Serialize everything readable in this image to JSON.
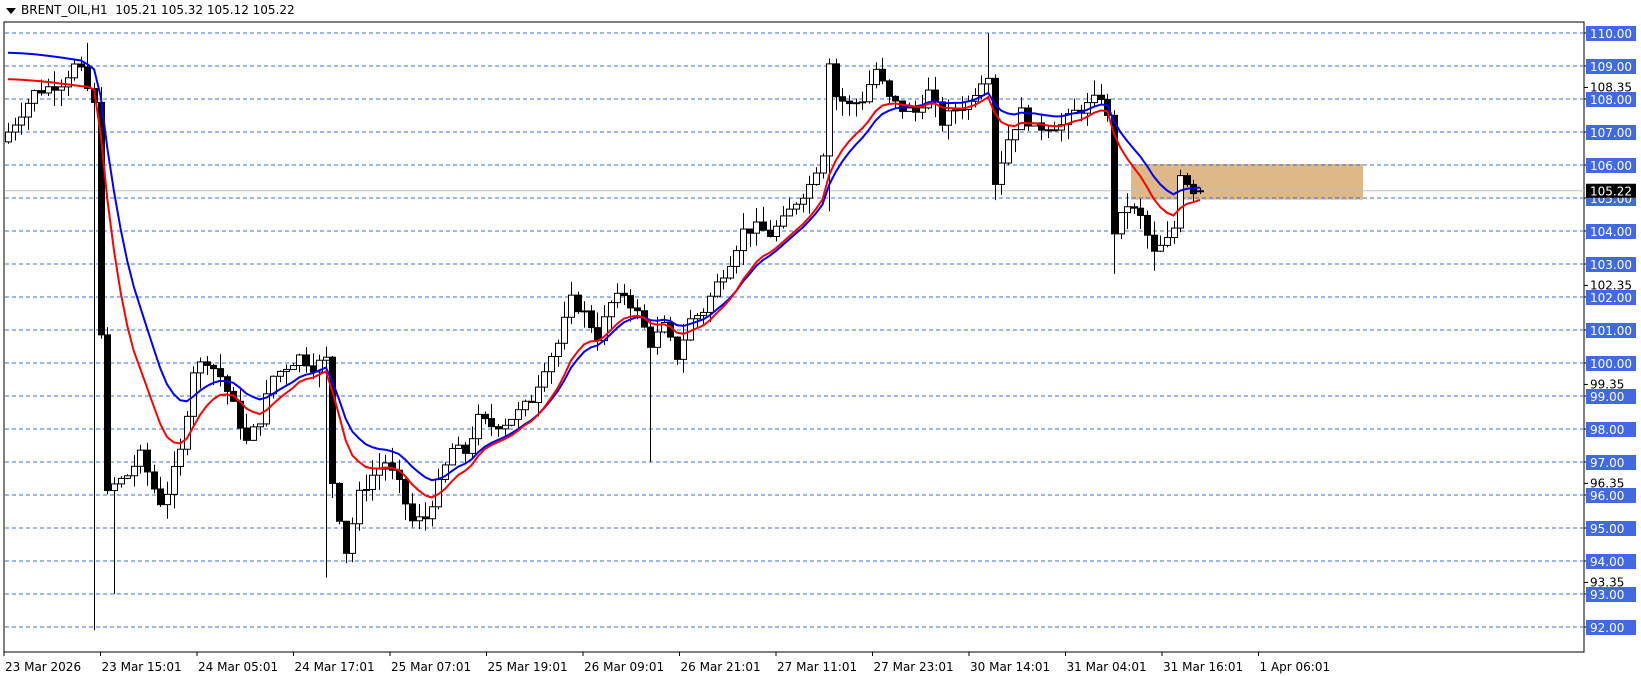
{
  "header": {
    "symbol": "BRENT_OIL,H1",
    "ohlc": "105.21 105.32 105.12 105.22"
  },
  "colors": {
    "grid": "#3a6fd8",
    "label_bg": "#4169e1",
    "ema_fast": "#ff0000",
    "ema_slow": "#0000ff",
    "zone": "#deb887",
    "current_price_bg": "#000000",
    "current_price_line": "#c0c0c0"
  },
  "chart_data": {
    "type": "candlestick",
    "title": "BRENT_OIL,H1",
    "timeframe": "H1",
    "last_ohlc": {
      "open": 105.21,
      "high": 105.32,
      "low": 105.12,
      "close": 105.22
    },
    "current_price": 105.22,
    "ylim": [
      91.7,
      110.1
    ],
    "y_grid_labels": [
      "110.00",
      "109.00",
      "108.00",
      "107.00",
      "106.00",
      "105.00",
      "104.00",
      "103.00",
      "102.00",
      "101.00",
      "100.00",
      "99.00",
      "98.00",
      "97.00",
      "96.00",
      "95.00",
      "94.00",
      "93.00",
      "92.00"
    ],
    "y_minor_labels": [
      "108.35",
      "102.35",
      "99.35",
      "96.35",
      "93.35"
    ],
    "x_labels": [
      "23 Mar 2026",
      "23 Mar 15:01",
      "24 Mar 05:01",
      "24 Mar 17:01",
      "25 Mar 07:01",
      "25 Mar 19:01",
      "26 Mar 09:01",
      "26 Mar 21:01",
      "27 Mar 11:01",
      "27 Mar 23:01",
      "30 Mar 14:01",
      "31 Mar 04:01",
      "31 Mar 16:01",
      "1 Apr 06:01"
    ],
    "series": [
      {
        "name": "EMA fast",
        "color": "#ff0000"
      },
      {
        "name": "EMA slow",
        "color": "#0000ff"
      }
    ],
    "zone": {
      "price_top": 106.0,
      "price_bottom": 104.98,
      "note": "shaded rectangle 31 Mar 04:01 to 1 Apr"
    },
    "key_points": [
      {
        "time": "23 Mar 2026",
        "price": 107.0
      },
      {
        "time": "23 Mar 10:00",
        "price_high": 109.6,
        "price_low": 91.9
      },
      {
        "time": "25 Mar 07:01",
        "price": 94.2
      },
      {
        "time": "26 Mar 18:00",
        "price": 102.0
      },
      {
        "time": "27 Mar 23:01",
        "price_high": 109.4
      },
      {
        "time": "30 Mar 22:00",
        "price_high": 110.0
      },
      {
        "time": "31 Mar 16:01",
        "price_low": 102.7
      },
      {
        "time": "1 Apr 06:01",
        "price": 105.22
      }
    ]
  }
}
